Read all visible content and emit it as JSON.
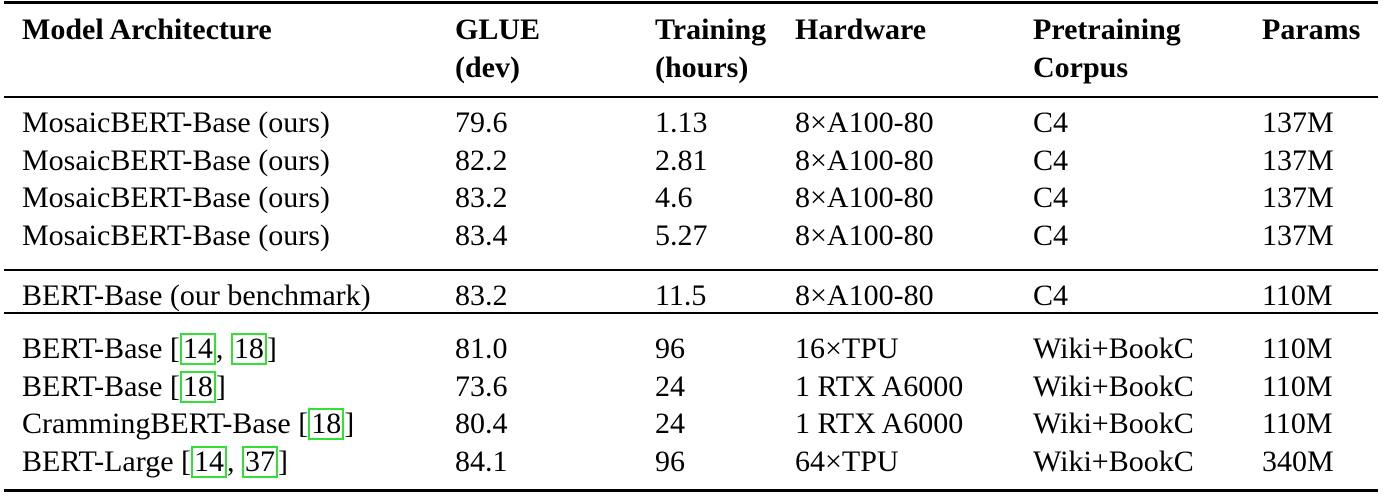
{
  "table": {
    "header": [
      [
        "Model Architecture"
      ],
      [
        "GLUE",
        "(dev)"
      ],
      [
        "Training",
        "(hours)"
      ],
      [
        "Hardware"
      ],
      [
        "Pretraining",
        "Corpus"
      ],
      [
        "Params"
      ]
    ],
    "groups": [
      [
        [
          [
            "MosaicBERT-Base (ours)"
          ],
          "79.6",
          "1.13",
          "8×A100-80",
          "C4",
          "137M"
        ],
        [
          [
            "MosaicBERT-Base (ours)"
          ],
          "82.2",
          "2.81",
          "8×A100-80",
          "C4",
          "137M"
        ],
        [
          [
            "MosaicBERT-Base (ours)"
          ],
          "83.2",
          "4.6",
          "8×A100-80",
          "C4",
          "137M"
        ],
        [
          [
            "MosaicBERT-Base (ours)"
          ],
          "83.4",
          "5.27",
          "8×A100-80",
          "C4",
          "137M"
        ]
      ],
      [
        [
          [
            "BERT-Base (our benchmark)"
          ],
          "83.2",
          "11.5",
          "8×A100-80",
          "C4",
          "110M"
        ]
      ],
      [
        [
          [
            "BERT-Base [",
            {
              "cite": "14"
            },
            ", ",
            {
              "cite": "18"
            },
            "]"
          ],
          "81.0",
          "96",
          "16×TPU",
          "Wiki+BookC",
          "110M"
        ],
        [
          [
            "BERT-Base [",
            {
              "cite": "18"
            },
            "]"
          ],
          "73.6",
          "24",
          "1 RTX A6000",
          "Wiki+BookC",
          "110M"
        ],
        [
          [
            "CrammingBERT-Base [",
            {
              "cite": "18"
            },
            "]"
          ],
          "80.4",
          "24",
          "1 RTX A6000",
          "Wiki+BookC",
          "110M"
        ],
        [
          [
            "BERT-Large [",
            {
              "cite": "14"
            },
            ", ",
            {
              "cite": "37"
            },
            "]"
          ],
          "84.1",
          "96",
          "64×TPU",
          "Wiki+BookC",
          "340M"
        ]
      ]
    ]
  }
}
